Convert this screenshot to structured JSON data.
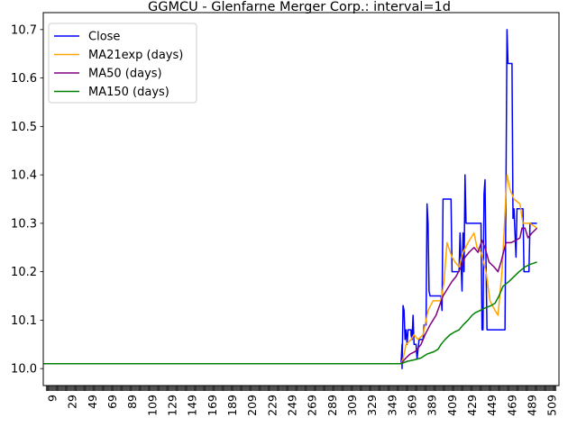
{
  "chart_data": {
    "type": "line",
    "title": "GGMCU - Glenfarne Merger Corp.: interval=1d",
    "xlabel": "",
    "ylabel": "",
    "xlim": [
      0,
      516
    ],
    "ylim": [
      9.965,
      10.735
    ],
    "x_ticks": [
      9,
      29,
      49,
      69,
      89,
      109,
      129,
      149,
      169,
      189,
      209,
      229,
      249,
      269,
      289,
      309,
      329,
      349,
      369,
      389,
      409,
      429,
      449,
      469,
      489,
      509
    ],
    "y_ticks": [
      10.0,
      10.1,
      10.2,
      10.3,
      10.4,
      10.5,
      10.6,
      10.7
    ],
    "legend_position": "top-left",
    "grid": false,
    "series": [
      {
        "name": "Close",
        "color": "#0000ff",
        "points": [
          [
            0,
            10.01
          ],
          [
            358,
            10.01
          ],
          [
            359,
            10.05
          ],
          [
            359,
            10.0
          ],
          [
            360,
            10.13
          ],
          [
            361,
            10.12
          ],
          [
            362,
            10.06
          ],
          [
            363,
            10.08
          ],
          [
            364,
            10.05
          ],
          [
            365,
            10.08
          ],
          [
            368,
            10.08
          ],
          [
            368,
            10.07
          ],
          [
            369,
            10.06
          ],
          [
            370,
            10.11
          ],
          [
            371,
            10.05
          ],
          [
            373,
            10.05
          ],
          [
            374,
            10.02
          ],
          [
            376,
            10.06
          ],
          [
            380,
            10.06
          ],
          [
            381,
            10.09
          ],
          [
            383,
            10.09
          ],
          [
            384,
            10.34
          ],
          [
            385,
            10.3
          ],
          [
            386,
            10.16
          ],
          [
            387,
            10.15
          ],
          [
            398,
            10.15
          ],
          [
            399,
            10.12
          ],
          [
            400,
            10.35
          ],
          [
            408,
            10.35
          ],
          [
            409,
            10.2
          ],
          [
            416,
            10.2
          ],
          [
            417,
            10.28
          ],
          [
            418,
            10.22
          ],
          [
            419,
            10.16
          ],
          [
            420,
            10.28
          ],
          [
            421,
            10.2
          ],
          [
            422,
            10.4
          ],
          [
            423,
            10.3
          ],
          [
            438,
            10.3
          ],
          [
            439,
            10.08
          ],
          [
            440,
            10.08
          ],
          [
            441,
            10.36
          ],
          [
            442,
            10.39
          ],
          [
            443,
            10.22
          ],
          [
            444,
            10.08
          ],
          [
            462,
            10.08
          ],
          [
            463,
            10.38
          ],
          [
            464,
            10.7
          ],
          [
            465,
            10.63
          ],
          [
            469,
            10.63
          ],
          [
            470,
            10.31
          ],
          [
            471,
            10.33
          ],
          [
            473,
            10.23
          ],
          [
            474,
            10.33
          ],
          [
            480,
            10.33
          ],
          [
            481,
            10.2
          ],
          [
            486,
            10.2
          ],
          [
            487,
            10.3
          ],
          [
            494,
            10.3
          ]
        ]
      },
      {
        "name": "MA21exp (days)",
        "color": "#ffa500",
        "points": [
          [
            0,
            10.01
          ],
          [
            358,
            10.01
          ],
          [
            360,
            10.02
          ],
          [
            363,
            10.05
          ],
          [
            368,
            10.06
          ],
          [
            371,
            10.07
          ],
          [
            375,
            10.06
          ],
          [
            380,
            10.07
          ],
          [
            385,
            10.12
          ],
          [
            390,
            10.14
          ],
          [
            398,
            10.14
          ],
          [
            401,
            10.18
          ],
          [
            404,
            10.26
          ],
          [
            409,
            10.23
          ],
          [
            412,
            10.22
          ],
          [
            416,
            10.21
          ],
          [
            420,
            10.24
          ],
          [
            425,
            10.26
          ],
          [
            431,
            10.28
          ],
          [
            434,
            10.25
          ],
          [
            438,
            10.24
          ],
          [
            443,
            10.2
          ],
          [
            447,
            10.14
          ],
          [
            452,
            10.12
          ],
          [
            455,
            10.11
          ],
          [
            459,
            10.2
          ],
          [
            464,
            10.4
          ],
          [
            467,
            10.37
          ],
          [
            471,
            10.35
          ],
          [
            477,
            10.34
          ],
          [
            480,
            10.3
          ],
          [
            487,
            10.3
          ],
          [
            494,
            10.29
          ]
        ]
      },
      {
        "name": "MA50 (days)",
        "color": "#800080",
        "points": [
          [
            0,
            10.01
          ],
          [
            358,
            10.01
          ],
          [
            362,
            10.02
          ],
          [
            367,
            10.03
          ],
          [
            372,
            10.035
          ],
          [
            378,
            10.05
          ],
          [
            382,
            10.07
          ],
          [
            387,
            10.09
          ],
          [
            393,
            10.11
          ],
          [
            400,
            10.15
          ],
          [
            406,
            10.17
          ],
          [
            409,
            10.18
          ],
          [
            413,
            10.19
          ],
          [
            418,
            10.21
          ],
          [
            422,
            10.23
          ],
          [
            426,
            10.24
          ],
          [
            431,
            10.25
          ],
          [
            435,
            10.24
          ],
          [
            439,
            10.265
          ],
          [
            442,
            10.25
          ],
          [
            446,
            10.22
          ],
          [
            451,
            10.21
          ],
          [
            455,
            10.2
          ],
          [
            458,
            10.22
          ],
          [
            463,
            10.26
          ],
          [
            468,
            10.26
          ],
          [
            473,
            10.265
          ],
          [
            477,
            10.27
          ],
          [
            479,
            10.29
          ],
          [
            482,
            10.29
          ],
          [
            485,
            10.27
          ],
          [
            489,
            10.28
          ],
          [
            494,
            10.29
          ]
        ]
      },
      {
        "name": "MA150 (days)",
        "color": "#008000",
        "points": [
          [
            0,
            10.01
          ],
          [
            358,
            10.01
          ],
          [
            364,
            10.015
          ],
          [
            371,
            10.018
          ],
          [
            378,
            10.022
          ],
          [
            384,
            10.03
          ],
          [
            391,
            10.035
          ],
          [
            395,
            10.04
          ],
          [
            398,
            10.05
          ],
          [
            402,
            10.06
          ],
          [
            407,
            10.07
          ],
          [
            411,
            10.075
          ],
          [
            416,
            10.08
          ],
          [
            420,
            10.09
          ],
          [
            425,
            10.1
          ],
          [
            429,
            10.11
          ],
          [
            432,
            10.115
          ],
          [
            437,
            10.12
          ],
          [
            442,
            10.125
          ],
          [
            448,
            10.13
          ],
          [
            452,
            10.135
          ],
          [
            456,
            10.15
          ],
          [
            460,
            10.17
          ],
          [
            466,
            10.18
          ],
          [
            471,
            10.19
          ],
          [
            476,
            10.2
          ],
          [
            482,
            10.21
          ],
          [
            487,
            10.215
          ],
          [
            494,
            10.22
          ]
        ]
      }
    ]
  }
}
